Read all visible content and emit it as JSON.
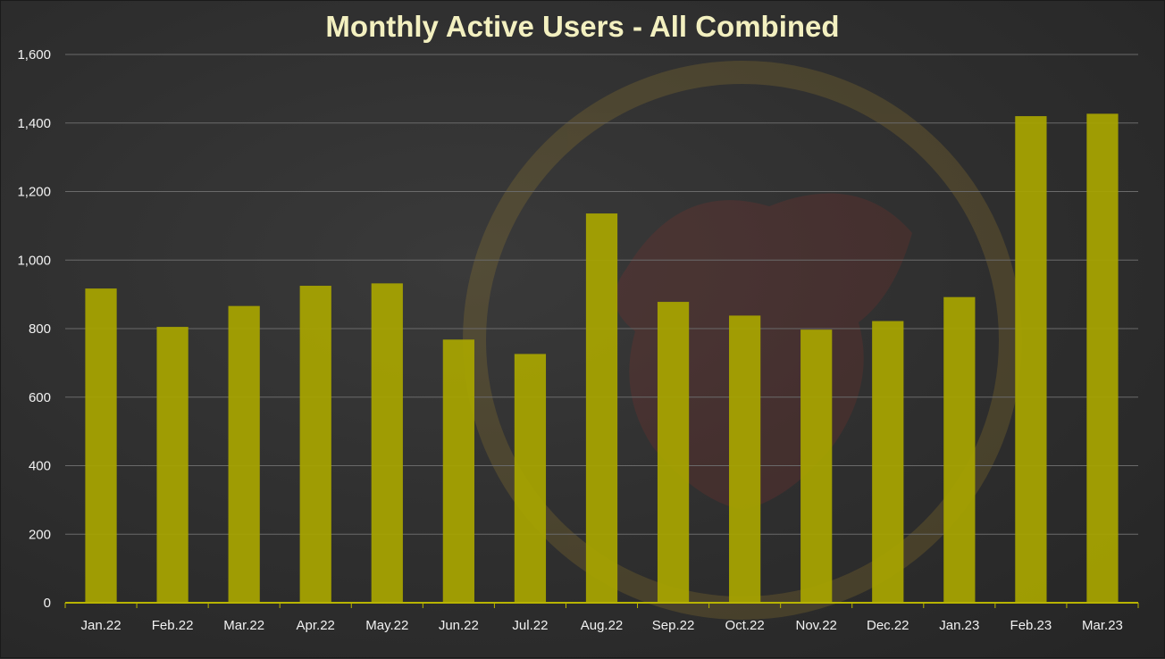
{
  "chart_data": {
    "type": "bar",
    "title": "Monthly Active Users - All Combined",
    "categories": [
      "Jan.22",
      "Feb.22",
      "Mar.22",
      "Apr.22",
      "May.22",
      "Jun.22",
      "Jul.22",
      "Aug.22",
      "Sep.22",
      "Oct.22",
      "Nov.22",
      "Dec.22",
      "Jan.23",
      "Feb.23",
      "Mar.23"
    ],
    "values": [
      917,
      805,
      866,
      925,
      932,
      768,
      726,
      1136,
      878,
      838,
      797,
      822,
      892,
      1420,
      1427
    ],
    "yticks": [
      "0",
      "200",
      "400",
      "600",
      "800",
      "1,000",
      "1,200",
      "1,400",
      "1,600"
    ],
    "ylim": [
      0,
      1600
    ],
    "grid": true,
    "legend": "none",
    "bar_color": "#a8a500",
    "xlabel": "",
    "ylabel": ""
  }
}
